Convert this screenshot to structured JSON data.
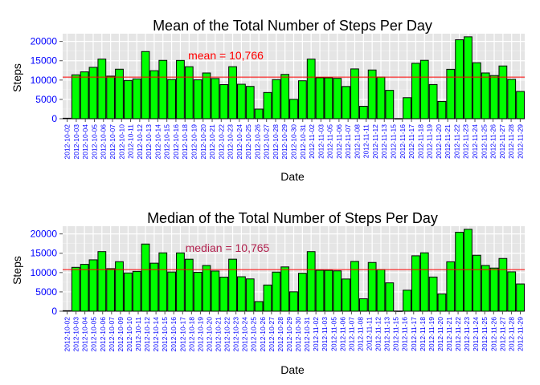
{
  "colors": {
    "panel": "#e5e5e5",
    "grid_major": "#ffffff",
    "grid_minor": "#f2f2f2",
    "bar_fill": "#00ff00",
    "bar_stroke": "#000000",
    "ref_line": "#ff0000",
    "mean_label": "#ff0000",
    "median_label": "#b2224f",
    "tick_label": "#0000ff"
  },
  "chart_data": [
    {
      "type": "bar",
      "title": "Mean of the Total Number of Steps Per Day",
      "xlabel": "Date",
      "ylabel": "Steps",
      "ylim": [
        0,
        22000
      ],
      "yticks": [
        0,
        5000,
        10000,
        15000,
        20000
      ],
      "grid": true,
      "legend": "none",
      "reference_line": {
        "value": 10766,
        "label": "mean =  10,766"
      },
      "categories": [
        "2012-10-02",
        "2012-10-03",
        "2012-10-04",
        "2012-10-05",
        "2012-10-06",
        "2012-10-07",
        "2012-10-09",
        "2012-10-10",
        "2012-10-11",
        "2012-10-12",
        "2012-10-13",
        "2012-10-14",
        "2012-10-15",
        "2012-10-16",
        "2012-10-17",
        "2012-10-18",
        "2012-10-19",
        "2012-10-20",
        "2012-10-21",
        "2012-10-22",
        "2012-10-23",
        "2012-10-24",
        "2012-10-25",
        "2012-10-26",
        "2012-10-27",
        "2012-10-28",
        "2012-10-29",
        "2012-10-30",
        "2012-10-31",
        "2012-11-02",
        "2012-11-03",
        "2012-11-05",
        "2012-11-06",
        "2012-11-07",
        "2012-11-08",
        "2012-11-11",
        "2012-11-12",
        "2012-11-13",
        "2012-11-15",
        "2012-11-16",
        "2012-11-17",
        "2012-11-18",
        "2012-11-19",
        "2012-11-20",
        "2012-11-21",
        "2012-11-22",
        "2012-11-23",
        "2012-11-24",
        "2012-11-25",
        "2012-11-26",
        "2012-11-27",
        "2012-11-28",
        "2012-11-29"
      ],
      "tick_labels": [
        "2012-10-02",
        "2012-10-03",
        "2012-10-04",
        "2012-10-05",
        "2012-10-06",
        "2012-10-07",
        "2012-10-10",
        "2012-10-11",
        "2012-10-12",
        "2012-10-13",
        "2012-10-14",
        "2012-10-15",
        "2012-10-16",
        "2012-10-18",
        "2012-10-19",
        "2012-10-20",
        "2012-10-21",
        "2012-10-22",
        "2012-10-23",
        "2012-10-24",
        "2012-10-25",
        "2012-10-26",
        "2012-10-27",
        "2012-10-28",
        "2012-10-29",
        "2012-10-30",
        "2012-10-31",
        "2012-11-02",
        "2012-11-03",
        "2012-11-05",
        "2012-11-06",
        "2012-11-07",
        "2012-11-08",
        "2012-11-11",
        "2012-11-12",
        "2012-11-13",
        "2012-11-15",
        "2012-11-16",
        "2012-11-17",
        "2012-11-18",
        "2012-11-19",
        "2012-11-20",
        "2012-11-21",
        "2012-11-22",
        "2012-11-23",
        "2012-11-24",
        "2012-11-25",
        "2012-11-26",
        "2012-11-27",
        "2012-11-28",
        "2012-11-29"
      ],
      "values": [
        126,
        11352,
        12116,
        13294,
        15420,
        11015,
        12811,
        9900,
        10304,
        17382,
        12426,
        15098,
        10139,
        15084,
        13452,
        10056,
        11829,
        10395,
        8821,
        13460,
        8918,
        8355,
        2492,
        6778,
        10119,
        11458,
        5018,
        9819,
        15414,
        10600,
        10571,
        10439,
        8334,
        12883,
        3219,
        12608,
        10765,
        7336,
        41,
        5441,
        14339,
        15110,
        8841,
        4472,
        12787,
        20427,
        21194,
        14478,
        11834,
        11162,
        13646,
        10183,
        7047
      ]
    },
    {
      "type": "bar",
      "title": "Median of the Total Number of Steps Per Day",
      "xlabel": "Date",
      "ylabel": "Steps",
      "ylim": [
        0,
        22000
      ],
      "yticks": [
        0,
        5000,
        10000,
        15000,
        20000
      ],
      "grid": true,
      "legend": "none",
      "reference_line": {
        "value": 10765,
        "label": "median = 10,765"
      },
      "categories": [
        "2012-10-02",
        "2012-10-03",
        "2012-10-04",
        "2012-10-05",
        "2012-10-06",
        "2012-10-07",
        "2012-10-09",
        "2012-10-10",
        "2012-10-11",
        "2012-10-12",
        "2012-10-13",
        "2012-10-14",
        "2012-10-15",
        "2012-10-16",
        "2012-10-17",
        "2012-10-18",
        "2012-10-19",
        "2012-10-20",
        "2012-10-21",
        "2012-10-22",
        "2012-10-23",
        "2012-10-24",
        "2012-10-25",
        "2012-10-26",
        "2012-10-27",
        "2012-10-28",
        "2012-10-29",
        "2012-10-30",
        "2012-10-31",
        "2012-11-02",
        "2012-11-03",
        "2012-11-05",
        "2012-11-06",
        "2012-11-07",
        "2012-11-08",
        "2012-11-11",
        "2012-11-12",
        "2012-11-13",
        "2012-11-15",
        "2012-11-16",
        "2012-11-17",
        "2012-11-18",
        "2012-11-19",
        "2012-11-20",
        "2012-11-21",
        "2012-11-22",
        "2012-11-23",
        "2012-11-24",
        "2012-11-25",
        "2012-11-26",
        "2012-11-27",
        "2012-11-28",
        "2012-11-29"
      ],
      "tick_labels": [
        "2012-10-02",
        "2012-10-03",
        "2012-10-04",
        "2012-10-05",
        "2012-10-06",
        "2012-10-07",
        "2012-10-09",
        "2012-10-10",
        "2012-10-11",
        "2012-10-12",
        "2012-10-14",
        "2012-10-15",
        "2012-10-16",
        "2012-10-17",
        "2012-10-18",
        "2012-10-19",
        "2012-10-20",
        "2012-10-21",
        "2012-10-22",
        "2012-10-23",
        "2012-10-24",
        "2012-10-25",
        "2012-10-26",
        "2012-10-27",
        "2012-10-28",
        "2012-10-29",
        "2012-10-30",
        "2012-10-31",
        "2012-11-02",
        "2012-11-03",
        "2012-11-05",
        "2012-11-06",
        "2012-11-07",
        "2012-11-08",
        "2012-11-11",
        "2012-11-12",
        "2012-11-13",
        "2012-11-15",
        "2012-11-16",
        "2012-11-17",
        "2012-11-18",
        "2012-11-19",
        "2012-11-20",
        "2012-11-21",
        "2012-11-22",
        "2012-11-23",
        "2012-11-24",
        "2012-11-25",
        "2012-11-26",
        "2012-11-27",
        "2012-11-28",
        "2012-11-29"
      ],
      "values": [
        126,
        11352,
        12116,
        13294,
        15420,
        11015,
        12811,
        9900,
        10304,
        17382,
        12426,
        15098,
        10139,
        15084,
        13452,
        10056,
        11829,
        10395,
        8821,
        13460,
        8918,
        8355,
        2492,
        6778,
        10119,
        11458,
        5018,
        9819,
        15414,
        10600,
        10571,
        10439,
        8334,
        12883,
        3219,
        12608,
        10765,
        7336,
        41,
        5441,
        14339,
        15110,
        8841,
        4472,
        12787,
        20427,
        21194,
        14478,
        11834,
        11162,
        13646,
        10183,
        7047
      ]
    }
  ]
}
